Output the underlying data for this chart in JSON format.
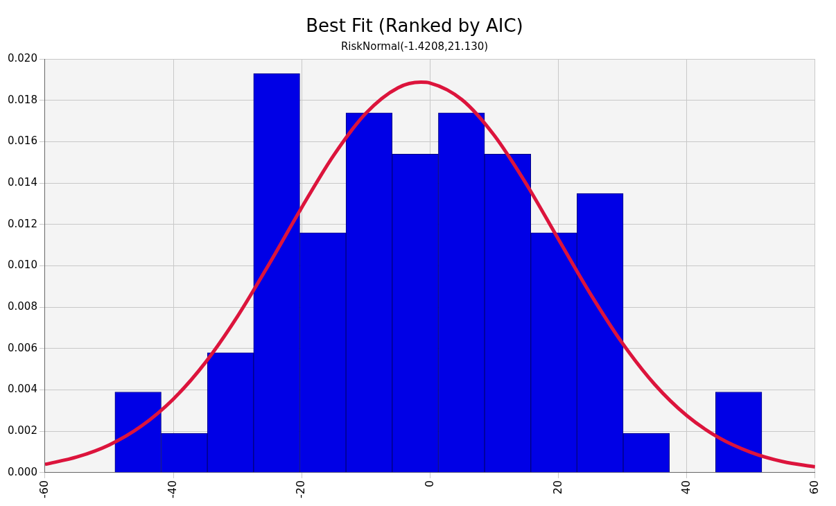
{
  "chart_data": {
    "type": "histogram",
    "title": "Best Fit (Ranked by AIC)",
    "subtitle": "RiskNormal(-1.4208,21.130)",
    "bins": [
      -49.1,
      -41.9,
      -34.7,
      -27.5,
      -20.3,
      -13.1,
      -5.9,
      1.3,
      8.5,
      15.7,
      22.9,
      30.1,
      37.3,
      44.5,
      51.7
    ],
    "values": [
      0.0039,
      0.0019,
      0.0058,
      0.0193,
      0.0116,
      0.0174,
      0.0154,
      0.0174,
      0.0154,
      0.0116,
      0.0135,
      0.0019,
      0,
      0.0039
    ],
    "color": "#0000e6",
    "series": [
      {
        "type": "line",
        "color": "#dc143c",
        "x": [
          -60,
          -55,
          -50,
          -45,
          -40,
          -35,
          -30,
          -25,
          -20,
          -15,
          -10,
          -5,
          -1.42,
          0,
          5,
          10,
          15,
          20,
          25,
          30,
          35,
          40,
          45,
          50,
          55,
          60
        ],
        "values": [
          0.0004,
          0.00076,
          0.00134,
          0.00225,
          0.00356,
          0.00533,
          0.00756,
          0.01013,
          0.01282,
          0.01535,
          0.01738,
          0.01861,
          0.01888,
          0.01884,
          0.01803,
          0.01631,
          0.01396,
          0.01129,
          0.00864,
          0.00625,
          0.00427,
          0.00276,
          0.00169,
          0.00098,
          0.00053,
          0.00028
        ]
      }
    ],
    "xlim": [
      -60,
      60
    ],
    "xticks": [
      -60,
      -40,
      -20,
      0,
      20,
      40,
      60
    ],
    "ylim": [
      0,
      0.02
    ],
    "yticks": [
      {
        "value": 0,
        "label": "0.000"
      },
      {
        "value": 0.002,
        "label": "0.002"
      },
      {
        "value": 0.004,
        "label": "0.004"
      },
      {
        "value": 0.006,
        "label": "0.006"
      },
      {
        "value": 0.008,
        "label": "0.008"
      },
      {
        "value": 0.01,
        "label": "0.010"
      },
      {
        "value": 0.012,
        "label": "0.012"
      },
      {
        "value": 0.014,
        "label": "0.014"
      },
      {
        "value": 0.016,
        "label": "0.016"
      },
      {
        "value": 0.018,
        "label": "0.018"
      },
      {
        "value": 0.02,
        "label": "0.020"
      }
    ],
    "grid": true,
    "legend": false
  }
}
